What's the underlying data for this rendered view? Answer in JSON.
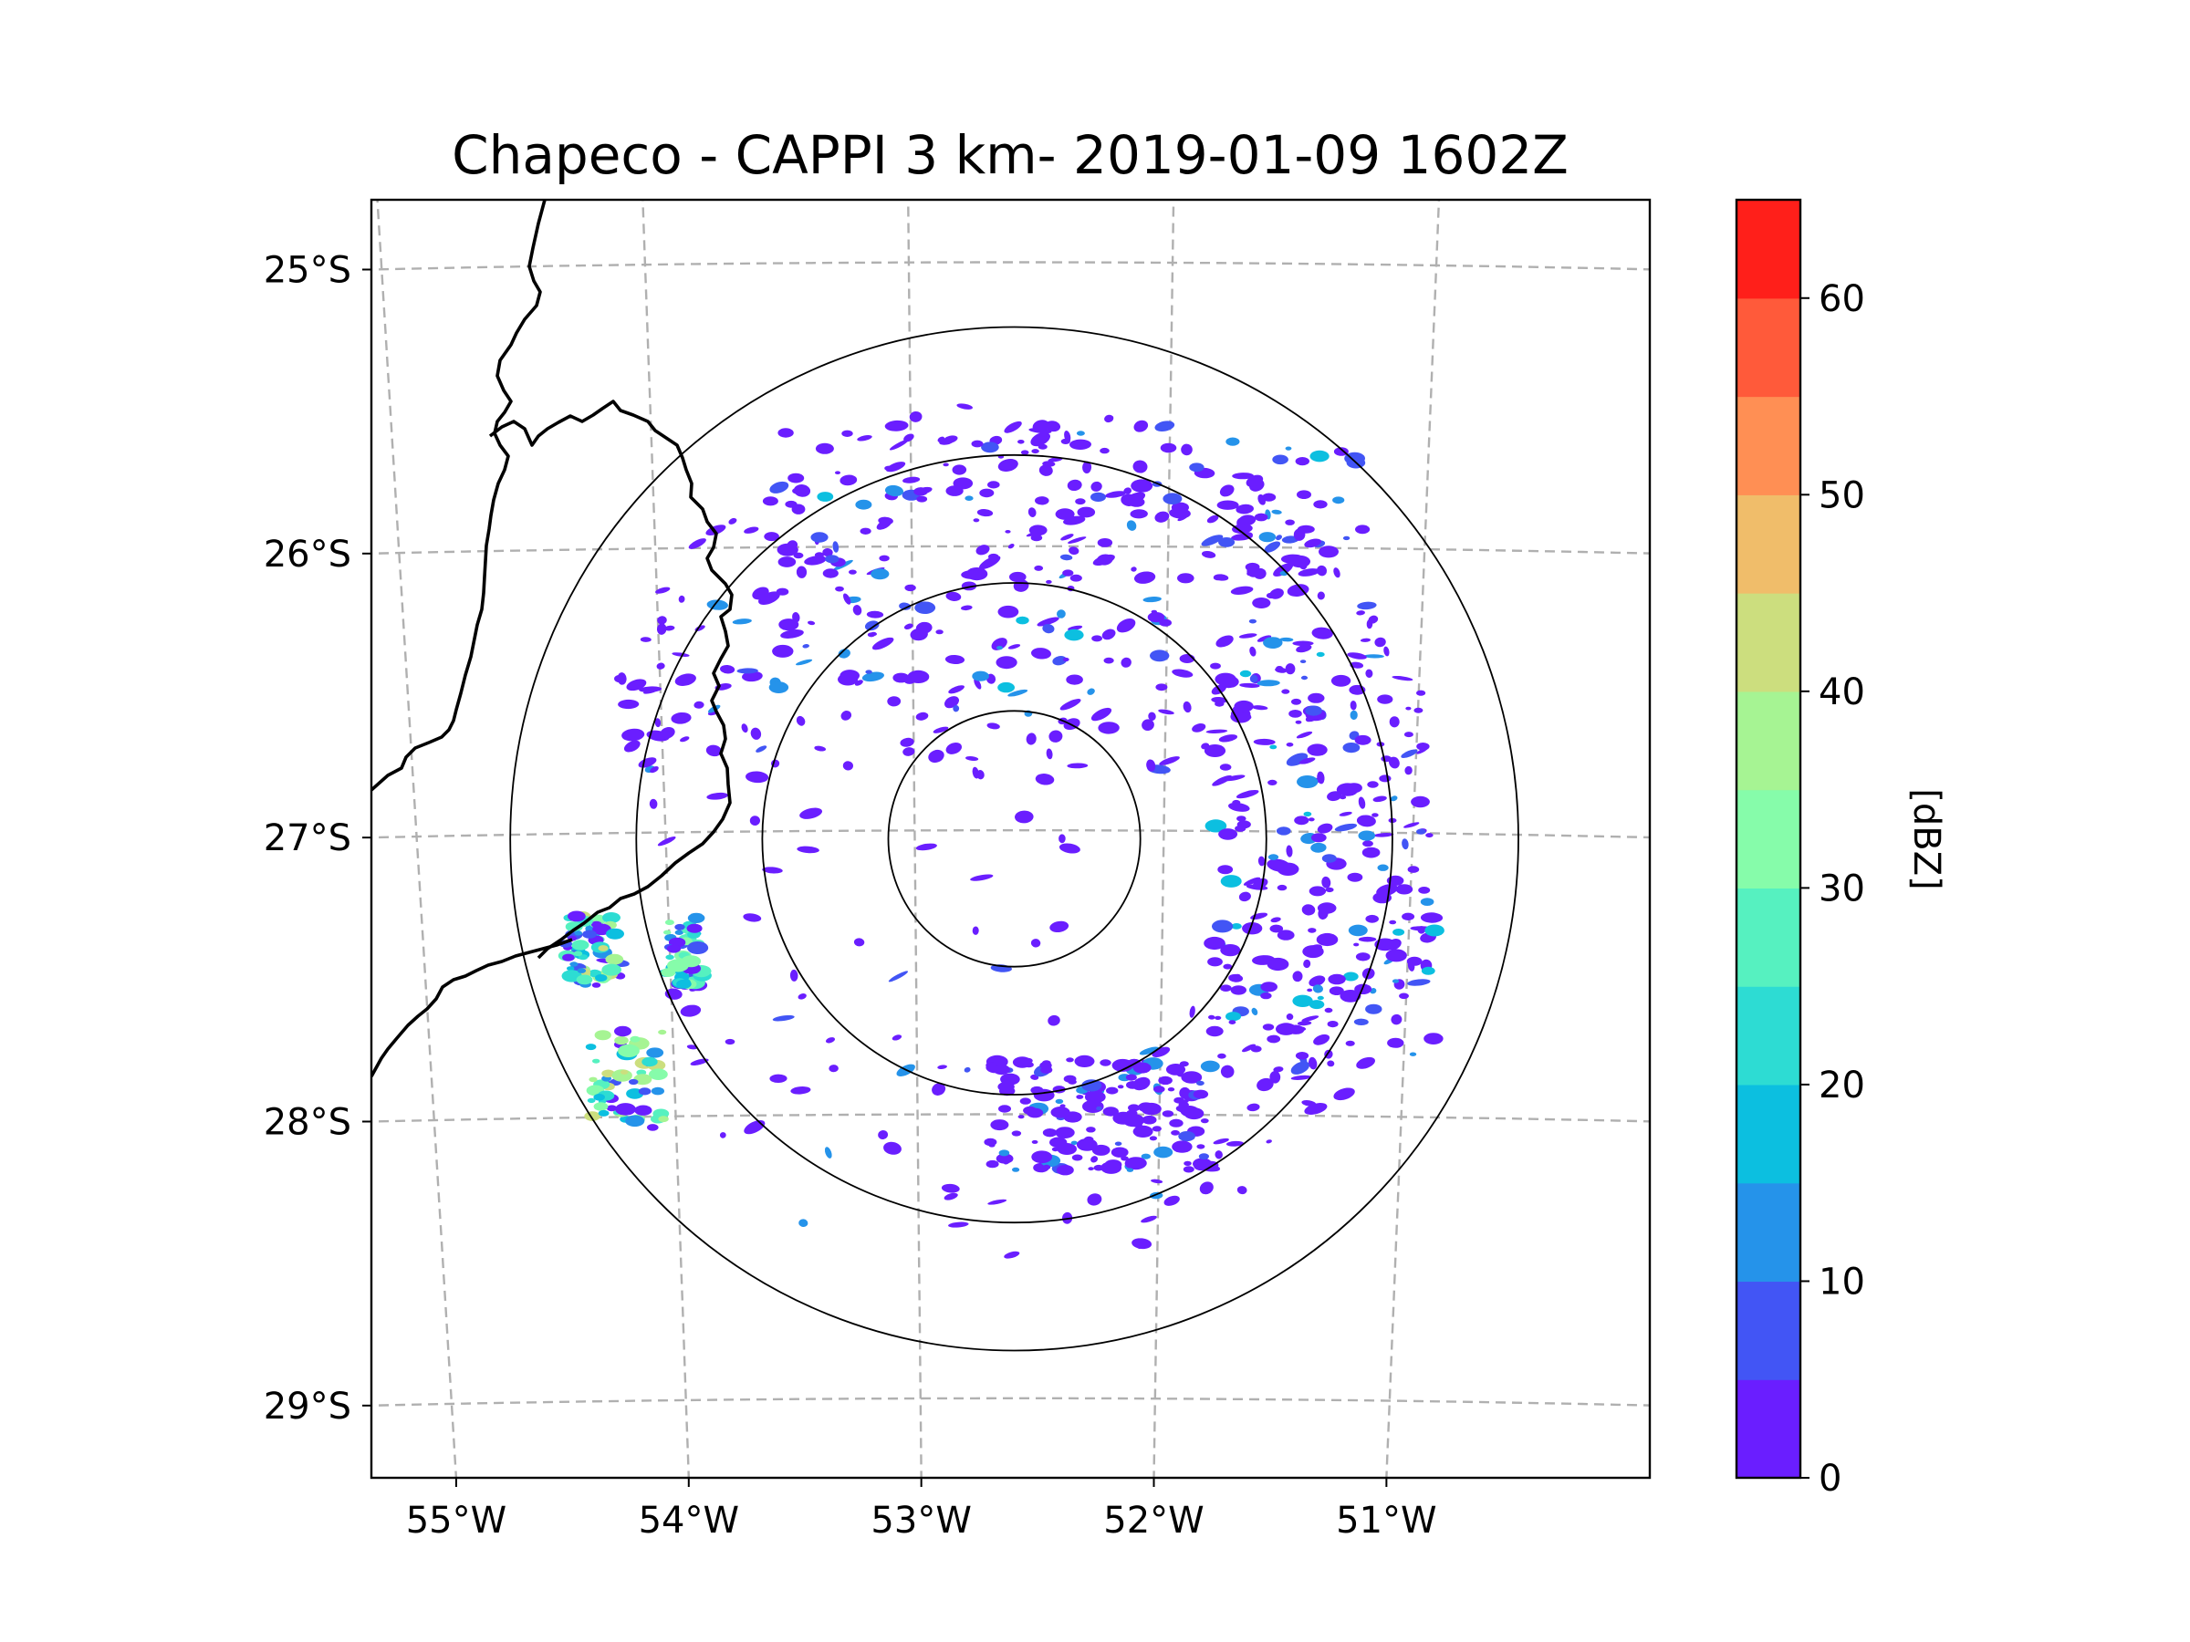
{
  "title": "Chapeco - CAPPI 3 km- 2019-01-09 1602Z",
  "chart_data": {
    "type": "map",
    "product": "CAPPI 3 km",
    "radar_site": "Chapeco",
    "datetime": "2019-01-09 1602Z",
    "x_ticks": [
      {
        "lon": -55,
        "label": "55°W"
      },
      {
        "lon": -54,
        "label": "54°W"
      },
      {
        "lon": -53,
        "label": "53°W"
      },
      {
        "lon": -52,
        "label": "52°W"
      },
      {
        "lon": -51,
        "label": "51°W"
      }
    ],
    "y_ticks": [
      {
        "lat": -25,
        "label": "25°S"
      },
      {
        "lat": -26,
        "label": "26°S"
      },
      {
        "lat": -27,
        "label": "27°S"
      },
      {
        "lat": -28,
        "label": "28°S"
      },
      {
        "lat": -29,
        "label": "29°S"
      }
    ],
    "lon_range": [
      -55.18,
      -50.05
    ],
    "lat_range": [
      -29.28,
      -24.78
    ],
    "radar_center": {
      "lon": -52.6,
      "lat": -27.03
    },
    "range_rings_km": [
      50,
      100,
      150,
      200
    ],
    "colorbar": {
      "label": "[dBZ]",
      "min": 0,
      "max": 65,
      "step": 5,
      "tick_values": [
        0,
        10,
        20,
        30,
        40,
        50,
        60
      ],
      "tick_labels": [
        "0",
        "10",
        "20",
        "30",
        "40",
        "50",
        "60"
      ],
      "colors": [
        "#6a1eff",
        "#4255f5",
        "#2593ea",
        "#0cbfe0",
        "#2ddcd3",
        "#56f1c0",
        "#86fcaa",
        "#a6f493",
        "#ccde7e",
        "#f0bd6a",
        "#ff8f54",
        "#ff5a3a",
        "#ff1f1a"
      ]
    },
    "echo_regions": [
      {
        "area": "north arc",
        "lon": [
          -53.6,
          -51.2
        ],
        "lat": [
          -25.6,
          -26.5
        ],
        "max_dbz": 15
      },
      {
        "area": "east flank",
        "lon": [
          -51.8,
          -50.9
        ],
        "lat": [
          -26.5,
          -27.8
        ],
        "max_dbz": 15
      },
      {
        "area": "south arc",
        "lon": [
          -52.7,
          -51.8
        ],
        "lat": [
          -27.8,
          -28.2
        ],
        "max_dbz": 10
      },
      {
        "area": "west cell near 54.3W 27.4S",
        "lon": [
          -54.4,
          -54.2
        ],
        "lat": [
          -27.3,
          -27.55
        ],
        "max_dbz": 40
      },
      {
        "area": "southwest line near 54.1W 28S",
        "lon": [
          -54.3,
          -54.0
        ],
        "lat": [
          -27.7,
          -28.05
        ],
        "max_dbz": 40
      },
      {
        "area": "isolated cells near 53.95W 27.4S",
        "lon": [
          -54.0,
          -53.85
        ],
        "lat": [
          -27.3,
          -27.55
        ],
        "max_dbz": 30
      }
    ]
  }
}
